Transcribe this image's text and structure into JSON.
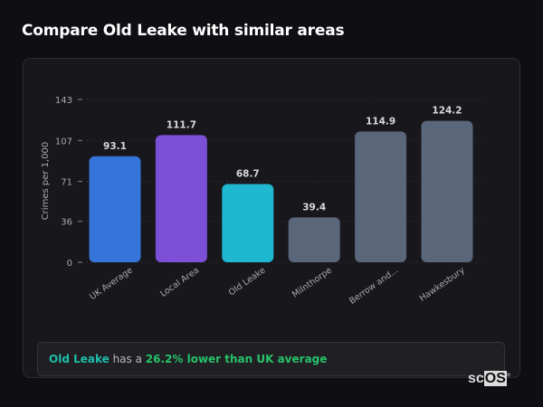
{
  "title": "Compare Old Leake with similar areas",
  "chart_data": {
    "type": "bar",
    "categories": [
      "UK Average",
      "Local Area",
      "Old Leake",
      "Milnthorpe",
      "Berrow and...",
      "Hawkesbury"
    ],
    "values": [
      93.1,
      111.7,
      68.7,
      39.4,
      114.9,
      124.2
    ],
    "value_labels": [
      "93.1",
      "111.7",
      "68.7",
      "39.4",
      "114.9",
      "124.2"
    ],
    "colors": [
      "#3575d9",
      "#7b4fd6",
      "#1fb8d0",
      "#5a6679",
      "#5a6679",
      "#5a6679"
    ],
    "ylabel": "Crimes per 1,000",
    "xlabel": "",
    "yticks": [
      0,
      36,
      71,
      107,
      143
    ],
    "ylim": [
      0,
      143
    ],
    "grid": true
  },
  "summary": {
    "area": "Old Leake",
    "middle": " has a ",
    "comparison": "26.2% lower than UK average"
  },
  "logo": {
    "left": "sc",
    "right": "OS"
  }
}
